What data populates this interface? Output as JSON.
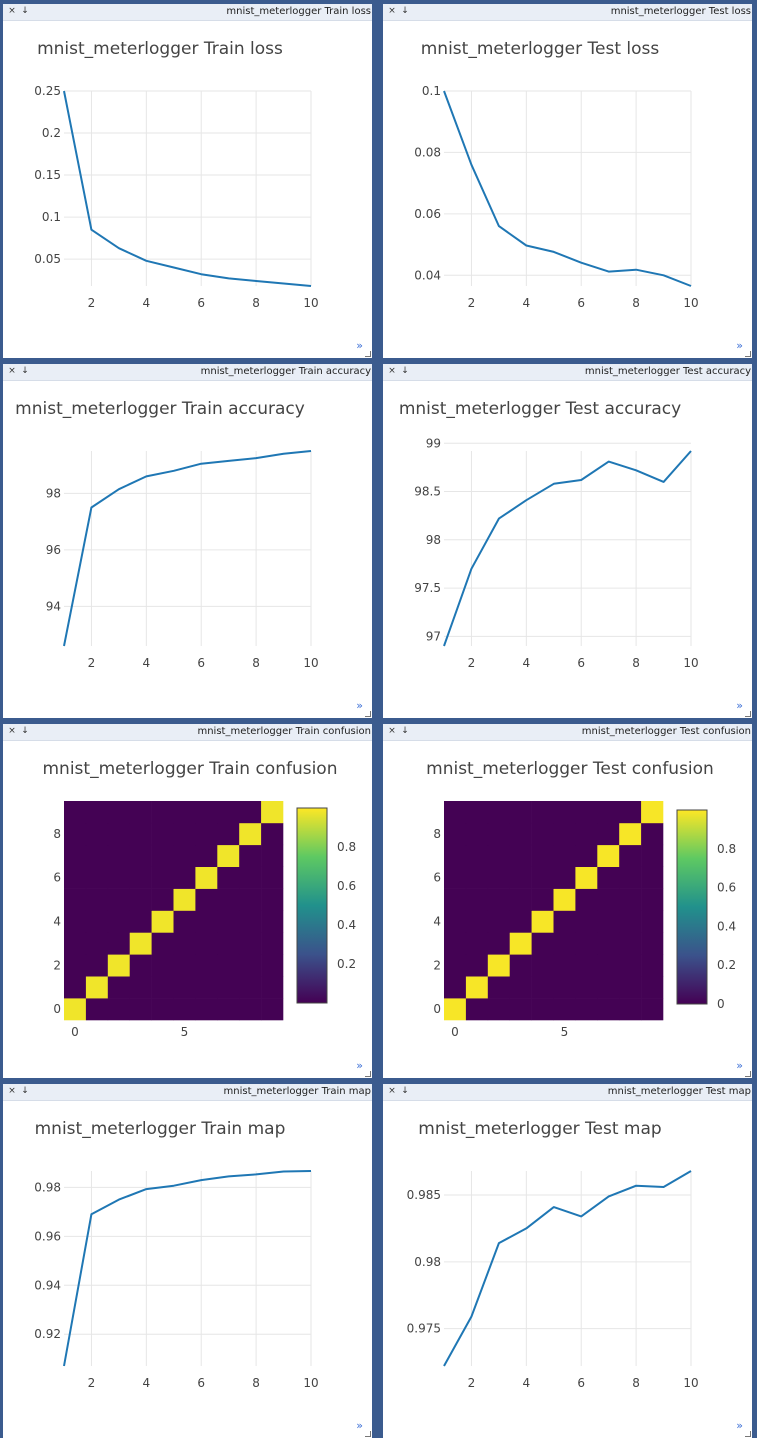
{
  "app": {
    "icons": {
      "close": "close-icon",
      "save": "download-icon",
      "expand": "expand-icon",
      "resize": "resize-handle-icon"
    },
    "close_glyph": "×",
    "save_glyph": "↓",
    "expand_glyph": "»"
  },
  "panes": [
    {
      "title_bar": "mnist_meterlogger Train loss",
      "chart_data": {
        "type": "line",
        "title": "mnist_meterlogger Train loss",
        "x": [
          1,
          2,
          3,
          4,
          5,
          6,
          7,
          8,
          9,
          10
        ],
        "series": [
          {
            "values": [
              0.25,
              0.085,
              0.063,
              0.048,
              0.04,
              0.032,
              0.027,
              0.024,
              0.021,
              0.018
            ]
          }
        ],
        "xlim": [
          1,
          10
        ],
        "ylim": [
          0.018,
          0.25
        ],
        "xticks": [
          2,
          4,
          6,
          8,
          10
        ],
        "yticks": [
          0.05,
          0.1,
          0.15,
          0.2,
          0.25
        ],
        "xticklabels": [
          "2",
          "4",
          "6",
          "8",
          "10"
        ],
        "yticklabels": [
          "0.05",
          "0.1",
          "0.15",
          "0.2",
          "0.25"
        ],
        "grid": true,
        "line_color": "#1f77b4"
      }
    },
    {
      "title_bar": "mnist_meterlogger Test loss",
      "chart_data": {
        "type": "line",
        "title": "mnist_meterlogger Test loss",
        "x": [
          1,
          2,
          3,
          4,
          5,
          6,
          7,
          8,
          9,
          10
        ],
        "series": [
          {
            "values": [
              0.1,
              0.076,
              0.056,
              0.0497,
              0.0476,
              0.0441,
              0.0412,
              0.0418,
              0.04,
              0.0365
            ]
          }
        ],
        "xlim": [
          1,
          10
        ],
        "ylim": [
          0.0365,
          0.1
        ],
        "xticks": [
          2,
          4,
          6,
          8,
          10
        ],
        "yticks": [
          0.04,
          0.06,
          0.08,
          0.1
        ],
        "xticklabels": [
          "2",
          "4",
          "6",
          "8",
          "10"
        ],
        "yticklabels": [
          "0.04",
          "0.06",
          "0.08",
          "0.1"
        ],
        "grid": true,
        "line_color": "#1f77b4"
      }
    },
    {
      "title_bar": "mnist_meterlogger Train accuracy",
      "chart_data": {
        "type": "line",
        "title": "mnist_meterlogger Train accuracy",
        "x": [
          1,
          2,
          3,
          4,
          5,
          6,
          7,
          8,
          9,
          10
        ],
        "series": [
          {
            "values": [
              92.6,
              97.5,
              98.15,
              98.6,
              98.8,
              99.05,
              99.15,
              99.25,
              99.4,
              99.5
            ]
          }
        ],
        "xlim": [
          1,
          10
        ],
        "ylim": [
          92.6,
          99.5
        ],
        "xticks": [
          2,
          4,
          6,
          8,
          10
        ],
        "yticks": [
          94,
          96,
          98
        ],
        "xticklabels": [
          "2",
          "4",
          "6",
          "8",
          "10"
        ],
        "yticklabels": [
          "94",
          "96",
          "98"
        ],
        "grid": true,
        "line_color": "#1f77b4"
      }
    },
    {
      "title_bar": "mnist_meterlogger Test accuracy",
      "chart_data": {
        "type": "line",
        "title": "mnist_meterlogger Test accuracy",
        "x": [
          1,
          2,
          3,
          4,
          5,
          6,
          7,
          8,
          9,
          10
        ],
        "series": [
          {
            "values": [
              96.9,
              97.7,
              98.22,
              98.41,
              98.58,
              98.62,
              98.81,
              98.72,
              98.6,
              98.92
            ]
          }
        ],
        "xlim": [
          1,
          10
        ],
        "ylim": [
          96.9,
          98.92
        ],
        "xticks": [
          2,
          4,
          6,
          8,
          10
        ],
        "yticks": [
          97,
          97.5,
          98,
          98.5,
          99
        ],
        "xticklabels": [
          "2",
          "4",
          "6",
          "8",
          "10"
        ],
        "yticklabels": [
          "97",
          "97.5",
          "98",
          "98.5",
          "99"
        ],
        "grid": true,
        "line_color": "#1f77b4"
      }
    },
    {
      "title_bar": "mnist_meterlogger Train confusion",
      "chart_data": {
        "type": "heatmap",
        "title": "mnist_meterlogger Train confusion",
        "size": 10,
        "diagonal_value": 0.98,
        "off_diagonal_value": 0.002,
        "xticks": [
          0,
          5
        ],
        "yticks": [
          0,
          2,
          4,
          6,
          8
        ],
        "xticklabels": [
          "0",
          "5"
        ],
        "yticklabels": [
          "0",
          "2",
          "4",
          "6",
          "8"
        ],
        "colorbar_ticks": [
          0.2,
          0.4,
          0.6,
          0.8
        ],
        "colorbar_ticklabels": [
          "0.2",
          "0.4",
          "0.6",
          "0.8"
        ],
        "colorscale": "viridis"
      }
    },
    {
      "title_bar": "mnist_meterlogger Test confusion",
      "chart_data": {
        "type": "heatmap",
        "title": "mnist_meterlogger Test confusion",
        "size": 10,
        "diagonal_value": 0.99,
        "off_diagonal_value": 0.002,
        "xticks": [
          0,
          5
        ],
        "yticks": [
          0,
          2,
          4,
          6,
          8
        ],
        "xticklabels": [
          "0",
          "5"
        ],
        "yticklabels": [
          "0",
          "2",
          "4",
          "6",
          "8"
        ],
        "colorbar_ticks": [
          0,
          0.2,
          0.4,
          0.6,
          0.8
        ],
        "colorbar_ticklabels": [
          "0",
          "0.2",
          "0.4",
          "0.6",
          "0.8"
        ],
        "colorscale": "viridis"
      }
    },
    {
      "title_bar": "mnist_meterlogger Train map",
      "chart_data": {
        "type": "line",
        "title": "mnist_meterlogger Train map",
        "x": [
          1,
          2,
          3,
          4,
          5,
          6,
          7,
          8,
          9,
          10
        ],
        "series": [
          {
            "values": [
              0.907,
              0.969,
              0.975,
              0.9793,
              0.9807,
              0.983,
              0.9845,
              0.9853,
              0.9865,
              0.9867
            ]
          }
        ],
        "xlim": [
          1,
          10
        ],
        "ylim": [
          0.907,
          0.9867
        ],
        "xticks": [
          2,
          4,
          6,
          8,
          10
        ],
        "yticks": [
          0.92,
          0.94,
          0.96,
          0.98
        ],
        "xticklabels": [
          "2",
          "4",
          "6",
          "8",
          "10"
        ],
        "yticklabels": [
          "0.92",
          "0.94",
          "0.96",
          "0.98"
        ],
        "grid": true,
        "line_color": "#1f77b4"
      }
    },
    {
      "title_bar": "mnist_meterlogger Test map",
      "chart_data": {
        "type": "line",
        "title": "mnist_meterlogger Test map",
        "x": [
          1,
          2,
          3,
          4,
          5,
          6,
          7,
          8,
          9,
          10
        ],
        "series": [
          {
            "values": [
              0.9722,
              0.9759,
              0.9814,
              0.9825,
              0.9841,
              0.9834,
              0.9849,
              0.9857,
              0.9856,
              0.9868
            ]
          }
        ],
        "xlim": [
          1,
          10
        ],
        "ylim": [
          0.9722,
          0.9868
        ],
        "xticks": [
          2,
          4,
          6,
          8,
          10
        ],
        "yticks": [
          0.975,
          0.98,
          0.985
        ],
        "xticklabels": [
          "2",
          "4",
          "6",
          "8",
          "10"
        ],
        "yticklabels": [
          "0.975",
          "0.98",
          "0.985"
        ],
        "grid": true,
        "line_color": "#1f77b4"
      }
    }
  ]
}
